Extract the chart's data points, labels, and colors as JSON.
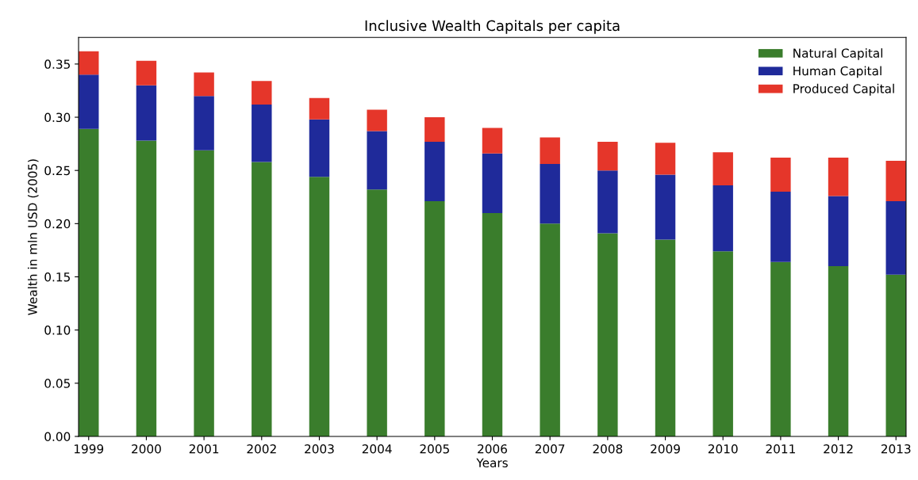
{
  "chart_data": {
    "type": "bar",
    "title": "Inclusive Wealth Capitals per capita",
    "xlabel": "Years",
    "ylabel": "Wealth in mln USD (2005)",
    "categories": [
      "1999",
      "2000",
      "2001",
      "2002",
      "2003",
      "2004",
      "2005",
      "2006",
      "2007",
      "2008",
      "2009",
      "2010",
      "2011",
      "2012",
      "2013"
    ],
    "stacked": true,
    "series": [
      {
        "name": "Natural Capital",
        "color": "#3a7d2c",
        "values": [
          0.289,
          0.278,
          0.269,
          0.258,
          0.244,
          0.232,
          0.221,
          0.21,
          0.2,
          0.191,
          0.185,
          0.174,
          0.164,
          0.16,
          0.152
        ]
      },
      {
        "name": "Human Capital",
        "color": "#1f2a9a",
        "values": [
          0.051,
          0.052,
          0.051,
          0.054,
          0.054,
          0.055,
          0.056,
          0.056,
          0.056,
          0.059,
          0.061,
          0.062,
          0.066,
          0.066,
          0.069
        ]
      },
      {
        "name": "Produced Capital",
        "color": "#e5362a",
        "values": [
          0.022,
          0.023,
          0.022,
          0.022,
          0.02,
          0.02,
          0.023,
          0.024,
          0.025,
          0.027,
          0.03,
          0.031,
          0.032,
          0.036,
          0.038
        ]
      }
    ],
    "ylim": [
      0,
      0.375
    ],
    "yticks": [
      {
        "value": 0,
        "label": "0.00"
      },
      {
        "value": 0.05,
        "label": "0.05"
      },
      {
        "value": 0.1,
        "label": "0.10"
      },
      {
        "value": 0.15,
        "label": "0.15"
      },
      {
        "value": 0.2,
        "label": "0.20"
      },
      {
        "value": 0.25,
        "label": "0.25"
      },
      {
        "value": 0.3,
        "label": "0.30"
      },
      {
        "value": 0.35,
        "label": "0.35"
      }
    ],
    "grid": false,
    "legend": "top right"
  }
}
